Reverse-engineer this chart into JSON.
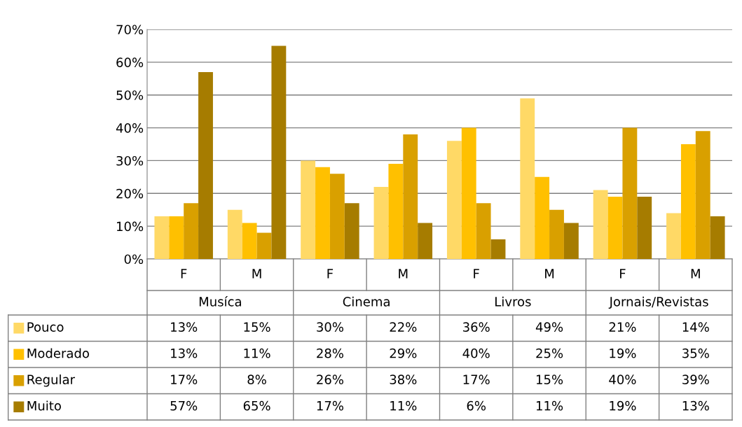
{
  "chart_data": {
    "type": "bar",
    "categories": [
      "F",
      "M",
      "F",
      "M",
      "F",
      "M",
      "F",
      "M"
    ],
    "annotations": [
      "Musíca",
      "Cinema",
      "Livros",
      "Jornais/Revistas"
    ],
    "series": [
      {
        "name": "Pouco",
        "color": "#ffd966",
        "values": [
          13,
          15,
          30,
          22,
          36,
          49,
          21,
          14
        ],
        "value_labels": [
          "13%",
          "15%",
          "30%",
          "22%",
          "36%",
          "49%",
          "21%",
          "14%"
        ]
      },
      {
        "name": "Moderado",
        "color": "#ffc000",
        "values": [
          13,
          11,
          28,
          29,
          40,
          25,
          19,
          35
        ],
        "value_labels": [
          "13%",
          "11%",
          "28%",
          "29%",
          "40%",
          "25%",
          "19%",
          "35%"
        ]
      },
      {
        "name": "Regular",
        "color": "#d9a000",
        "values": [
          17,
          8,
          26,
          38,
          17,
          15,
          40,
          39
        ],
        "value_labels": [
          "17%",
          "8%",
          "26%",
          "38%",
          "17%",
          "15%",
          "40%",
          "39%"
        ]
      },
      {
        "name": "Muito",
        "color": "#a67c00",
        "values": [
          57,
          65,
          17,
          11,
          6,
          11,
          19,
          13
        ],
        "value_labels": [
          "57%",
          "65%",
          "17%",
          "11%",
          "6%",
          "11%",
          "19%",
          "13%"
        ]
      }
    ],
    "ylim": [
      0,
      70
    ],
    "yticks": [
      {
        "value": 0,
        "label": "0%"
      },
      {
        "value": 10,
        "label": "10%"
      },
      {
        "value": 20,
        "label": "20%"
      },
      {
        "value": 30,
        "label": "30%"
      },
      {
        "value": 40,
        "label": "40%"
      },
      {
        "value": 50,
        "label": "50%"
      },
      {
        "value": 60,
        "label": "60%"
      },
      {
        "value": 70,
        "label": "70%"
      }
    ],
    "grid": "y",
    "legend": "bottom"
  }
}
